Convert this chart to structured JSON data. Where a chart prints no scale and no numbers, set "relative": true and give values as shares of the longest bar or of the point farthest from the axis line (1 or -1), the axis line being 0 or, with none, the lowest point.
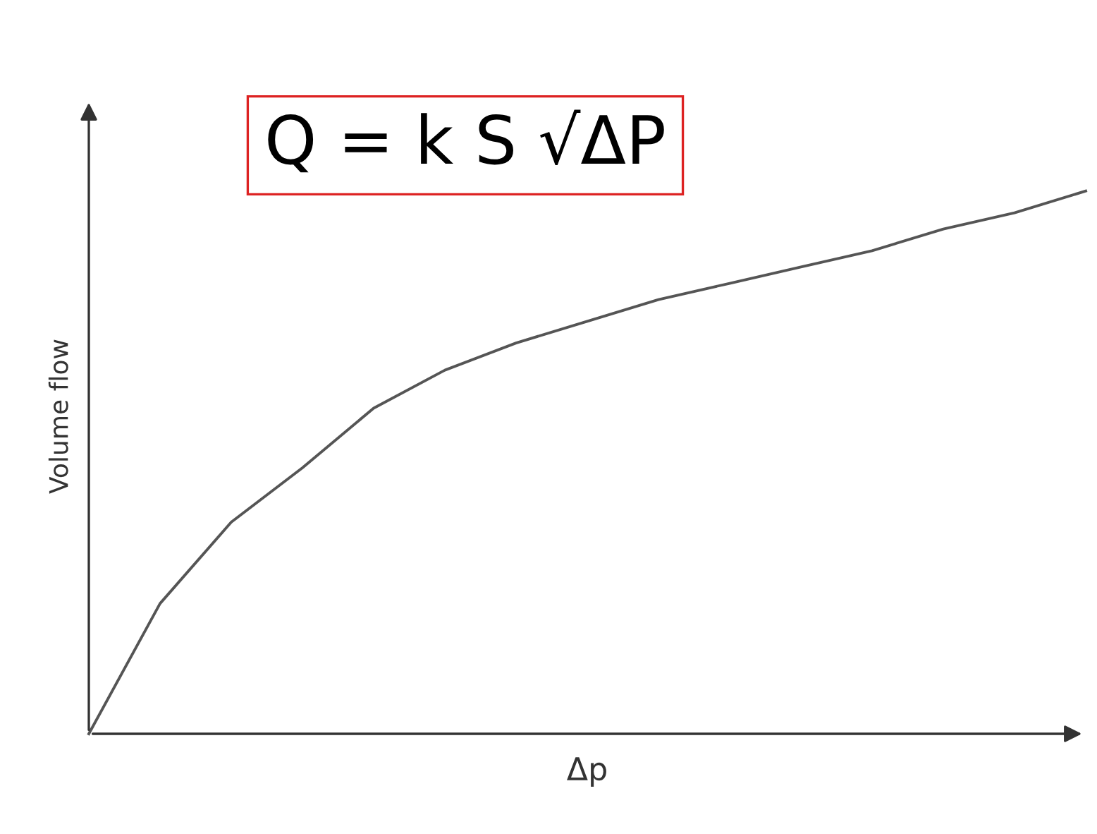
{
  "chart_data": {
    "type": "line",
    "relative": true,
    "xlabel": "Δp",
    "ylabel": "Volume flow",
    "annotations": [
      "Q = k S √ΔP"
    ],
    "categories": [
      null,
      null,
      null,
      null,
      null,
      null,
      null,
      null,
      null,
      null,
      null,
      null,
      null,
      null,
      null
    ],
    "series": [
      {
        "color": "#555555",
        "values": [
          0,
          0.24,
          0.39,
          0.49,
          0.6,
          0.67,
          0.72,
          0.76,
          0.8,
          0.83,
          0.86,
          0.89,
          0.93,
          0.96,
          1.0
        ]
      }
    ],
    "grid": false,
    "line_style": "solid",
    "marker": "none"
  }
}
